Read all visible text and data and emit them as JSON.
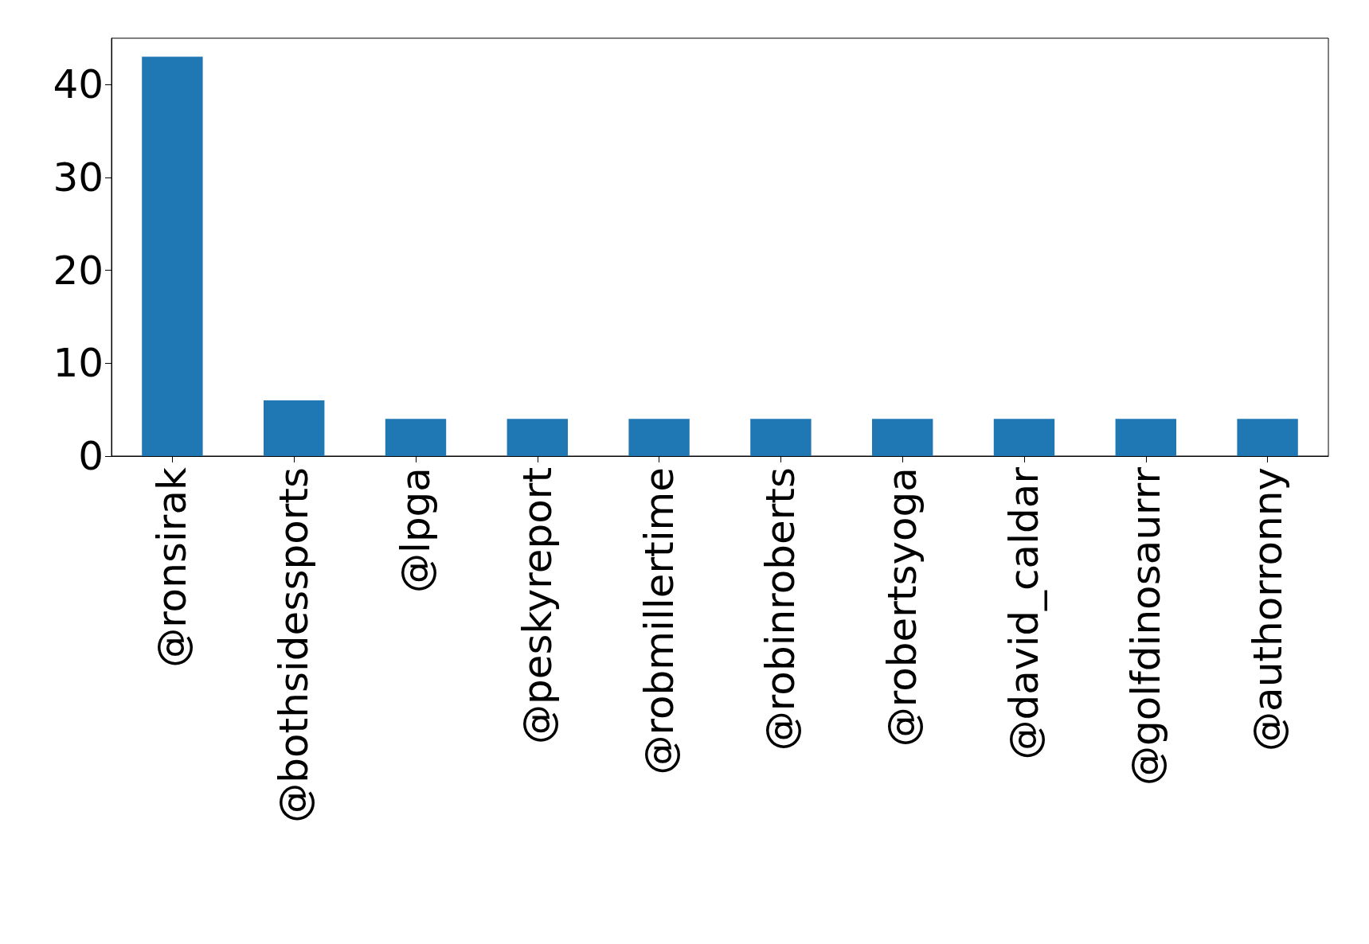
{
  "chart_data": {
    "type": "bar",
    "categories": [
      "@ronsirak",
      "@bothsidessports",
      "@lpga",
      "@peskyreport",
      "@robmillertime",
      "@robinroberts",
      "@robertsyoga",
      "@david_caldar",
      "@golfdinosaurrr",
      "@authorronny"
    ],
    "values": [
      43,
      6,
      4,
      4,
      4,
      4,
      4,
      4,
      4,
      4
    ],
    "color": "#1f77b4",
    "ylim": [
      0,
      45
    ],
    "yticks": [
      0,
      10,
      20,
      30,
      40
    ],
    "grid": false
  }
}
